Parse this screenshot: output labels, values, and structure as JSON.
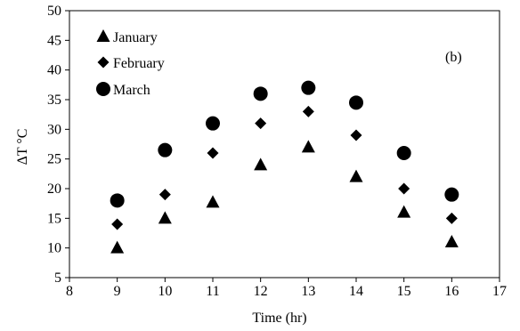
{
  "chart_data": {
    "type": "scatter",
    "title": "",
    "xlabel": "Time (hr)",
    "ylabel": "ΔT °C",
    "xlim": [
      8,
      17
    ],
    "ylim": [
      5,
      50
    ],
    "xticks": [
      "8",
      "9",
      "10",
      "11",
      "12",
      "13",
      "14",
      "15",
      "16",
      "17"
    ],
    "yticks": [
      "5",
      "10",
      "15",
      "20",
      "25",
      "30",
      "35",
      "40",
      "45",
      "50"
    ],
    "grid": false,
    "legend_position": "top-left",
    "annotation": "(b)",
    "x": [
      9,
      10,
      11,
      12,
      13,
      14,
      15,
      16
    ],
    "series": [
      {
        "name": "January",
        "marker": "triangle",
        "color": "#000000",
        "values": [
          10,
          15,
          17.7,
          24,
          27,
          22,
          16,
          11
        ]
      },
      {
        "name": "February",
        "marker": "diamond",
        "color": "#000000",
        "values": [
          14,
          19,
          26,
          31,
          33,
          29,
          20,
          15
        ]
      },
      {
        "name": "March",
        "marker": "circle",
        "color": "#000000",
        "values": [
          18,
          26.5,
          31,
          36,
          37,
          34.5,
          26,
          19
        ]
      }
    ]
  }
}
